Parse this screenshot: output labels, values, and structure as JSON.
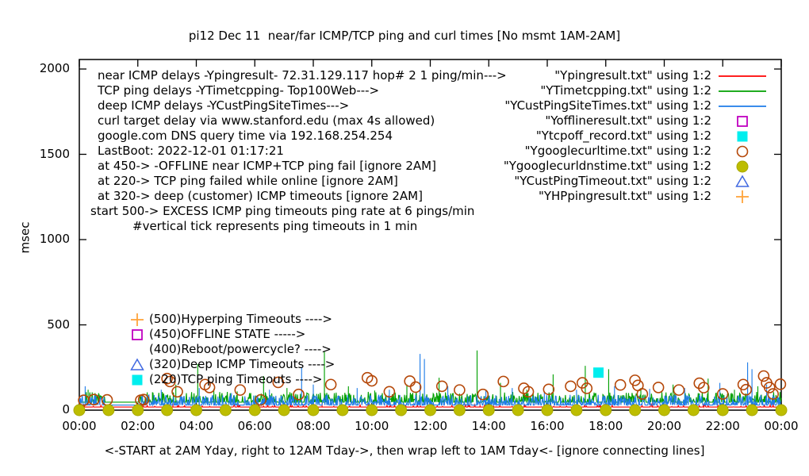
{
  "info_lines": [
    "near ICMP delays -Ypingresult- 72.31.129.117 hop# 2 1 ping/min--->",
    "TCP ping delays -YTimetcpping- Top100Web--->",
    "deep ICMP delays -YCustPingSiteTimes--->",
    "curl target delay via www.stanford.edu (max 4s allowed)",
    "google.com DNS query time via 192.168.254.254",
    "LastBoot: 2022-12-01 01:17:21",
    "at 450-> -OFFLINE near ICMP+TCP ping fail [ignore 2AM]",
    "at 220-> TCP ping failed while online [ignore 2AM]",
    "at 320-> deep (customer) ICMP timeouts [ignore 2AM]",
    "start 500-> EXCESS ICMP ping timeouts ping rate at 6 pings/min",
    "#vertical tick represents ping timeouts in 1 min"
  ],
  "threshold_annotations": [
    {
      "marker": "plus",
      "color": "#ffa43b",
      "text": "(500)Hyperping Timeouts ---->"
    },
    {
      "marker": "open-square",
      "color": "#c000c0",
      "text": "(450)OFFLINE STATE ----->"
    },
    {
      "marker": "none",
      "color": "",
      "text": "(400)Reboot/powercycle? ---->"
    },
    {
      "marker": "open-triangle",
      "color": "#4169e1",
      "text": "(320)Deep ICMP Timeouts ---->"
    },
    {
      "marker": "filled-square",
      "color": "#00eeee",
      "text": "(220)TCP ping Timeouts ---->"
    }
  ],
  "chart_data": {
    "type": "line",
    "title": "pi12 Dec 11  near/far ICMP/TCP ping and curl times [No msmt 1AM-2AM]",
    "ylabel": "msec",
    "xlabel": "<-START at 2AM Yday, right to 12AM Tday->, then wrap left to 1AM Tday<- [ignore connecting lines]",
    "ylim": [
      0,
      2000
    ],
    "y_ticks": [
      0,
      500,
      1000,
      1500,
      2000
    ],
    "x_tick_labels": [
      "00:00",
      "02:00",
      "04:00",
      "06:00",
      "08:00",
      "10:00",
      "12:00",
      "14:00",
      "16:00",
      "18:00",
      "20:00",
      "22:00",
      "00:00"
    ],
    "x_tick_hours": [
      0,
      2,
      4,
      6,
      8,
      10,
      12,
      14,
      16,
      18,
      20,
      22,
      24
    ],
    "grid": false,
    "legend_position": "top-right",
    "no_measurement_gap_hours": [
      0.9,
      2.05
    ],
    "noise_seed": 12,
    "series": [
      {
        "name": "Ypingresult.txt",
        "legend_label": "\"Ypingresult.txt\" using 1:2",
        "style": "line",
        "color": "#ff0000",
        "baseline": 18,
        "noise": {
          "prob": 0.1,
          "max": 18
        },
        "spikes": [
          [
            3.2,
            60
          ],
          [
            8.3,
            55
          ],
          [
            13.7,
            50
          ],
          [
            19.6,
            55
          ],
          [
            23.1,
            60
          ]
        ]
      },
      {
        "name": "YTimetcpping.txt",
        "legend_label": "\"YTimetcpping.txt\" using 1:2",
        "style": "line",
        "color": "#00a000",
        "baseline": 47,
        "noise": {
          "prob": 0.45,
          "max": 60
        },
        "spikes": [
          [
            0.3,
            120
          ],
          [
            2.5,
            105
          ],
          [
            3.3,
            150
          ],
          [
            4.05,
            270
          ],
          [
            4.6,
            125
          ],
          [
            5.4,
            110
          ],
          [
            6.3,
            200
          ],
          [
            7.1,
            130
          ],
          [
            8.38,
            345
          ],
          [
            9.2,
            140
          ],
          [
            10.1,
            115
          ],
          [
            11.2,
            150
          ],
          [
            12.3,
            190
          ],
          [
            13.6,
            350
          ],
          [
            14.4,
            160
          ],
          [
            15.3,
            120
          ],
          [
            16.2,
            210
          ],
          [
            17.3,
            260
          ],
          [
            18.1,
            240
          ],
          [
            19.2,
            130
          ],
          [
            20.3,
            150
          ],
          [
            21.5,
            185
          ],
          [
            22.4,
            120
          ],
          [
            23.2,
            140
          ]
        ]
      },
      {
        "name": "YCustPingSiteTimes.txt",
        "legend_label": "\"YCustPingSiteTimes.txt\" using 1:2",
        "style": "line",
        "color": "#1e7ce8",
        "baseline": 30,
        "noise": {
          "prob": 0.5,
          "max": 60
        },
        "spikes": [
          [
            0.2,
            140
          ],
          [
            2.8,
            120
          ],
          [
            4.1,
            130
          ],
          [
            5.2,
            100
          ],
          [
            6.5,
            120
          ],
          [
            7.6,
            250
          ],
          [
            8.0,
            150
          ],
          [
            9.5,
            130
          ],
          [
            10.6,
            120
          ],
          [
            11.65,
            330
          ],
          [
            11.8,
            300
          ],
          [
            12.6,
            140
          ],
          [
            13.9,
            120
          ],
          [
            14.8,
            130
          ],
          [
            15.9,
            110
          ],
          [
            17.0,
            120
          ],
          [
            18.3,
            140
          ],
          [
            19.5,
            125
          ],
          [
            20.7,
            130
          ],
          [
            21.9,
            160
          ],
          [
            22.85,
            280
          ],
          [
            23.0,
            240
          ],
          [
            23.5,
            150
          ]
        ]
      },
      {
        "name": "Yofflineresult.txt",
        "legend_label": "\"Yofflineresult.txt\" using 1:2",
        "style": "points",
        "marker": "open-square",
        "color": "#c000c0",
        "points": []
      },
      {
        "name": "Ytcpoff_record.txt",
        "legend_label": "\"Ytcpoff_record.txt\" using 1:2",
        "style": "points",
        "marker": "filled-square",
        "color": "#00eeee",
        "points": [
          [
            17.75,
            220
          ]
        ]
      },
      {
        "name": "Ygooglecurltime.txt",
        "legend_label": "\"Ygooglecurltime.txt\" using 1:2",
        "style": "points",
        "marker": "open-circle",
        "color": "#b54708",
        "points": [
          [
            0.15,
            58
          ],
          [
            0.5,
            62
          ],
          [
            0.95,
            60
          ],
          [
            2.1,
            58
          ],
          [
            2.2,
            62
          ],
          [
            3.0,
            185
          ],
          [
            3.1,
            168
          ],
          [
            3.35,
            108
          ],
          [
            4.3,
            150
          ],
          [
            4.45,
            133
          ],
          [
            5.5,
            118
          ],
          [
            6.2,
            60
          ],
          [
            6.8,
            163
          ],
          [
            7.5,
            92
          ],
          [
            8.6,
            150
          ],
          [
            9.85,
            190
          ],
          [
            10.0,
            172
          ],
          [
            10.6,
            108
          ],
          [
            11.3,
            170
          ],
          [
            11.5,
            135
          ],
          [
            12.4,
            140
          ],
          [
            13.0,
            118
          ],
          [
            13.8,
            92
          ],
          [
            14.5,
            168
          ],
          [
            15.2,
            128
          ],
          [
            15.35,
            108
          ],
          [
            16.05,
            122
          ],
          [
            16.8,
            140
          ],
          [
            17.2,
            160
          ],
          [
            17.35,
            128
          ],
          [
            18.5,
            148
          ],
          [
            19.0,
            175
          ],
          [
            19.1,
            145
          ],
          [
            19.25,
            95
          ],
          [
            19.8,
            133
          ],
          [
            20.5,
            118
          ],
          [
            21.2,
            158
          ],
          [
            21.35,
            132
          ],
          [
            22.0,
            95
          ],
          [
            22.7,
            150
          ],
          [
            22.8,
            120
          ],
          [
            23.4,
            200
          ],
          [
            23.5,
            160
          ],
          [
            23.6,
            133
          ],
          [
            23.72,
            95
          ],
          [
            23.97,
            152
          ]
        ]
      },
      {
        "name": "Ygooglecurldnstime.txt",
        "legend_label": "\"Ygooglecurldnstime.txt\" using 1:2",
        "style": "points",
        "marker": "filled-circle",
        "color": "#bdbd00",
        "points": [
          [
            0,
            0
          ],
          [
            1,
            0
          ],
          [
            2,
            0
          ],
          [
            3,
            0
          ],
          [
            4,
            0
          ],
          [
            5,
            0
          ],
          [
            6,
            0
          ],
          [
            7,
            0
          ],
          [
            8,
            0
          ],
          [
            9,
            0
          ],
          [
            10,
            0
          ],
          [
            11,
            0
          ],
          [
            12,
            0
          ],
          [
            13,
            0
          ],
          [
            14,
            0
          ],
          [
            15,
            0
          ],
          [
            16,
            0
          ],
          [
            17,
            0
          ],
          [
            18,
            0
          ],
          [
            19,
            0
          ],
          [
            20,
            0
          ],
          [
            21,
            0
          ],
          [
            22,
            0
          ],
          [
            23,
            0
          ],
          [
            24,
            0
          ]
        ]
      },
      {
        "name": "YCustPingTimeout.txt",
        "legend_label": "\"YCustPingTimeout.txt\" using 1:2",
        "style": "points",
        "marker": "open-triangle",
        "color": "#4169e1",
        "points": []
      },
      {
        "name": "YHPpingresult.txt",
        "legend_label": "\"YHPpingresult.txt\" using 1:2",
        "style": "points",
        "marker": "plus",
        "color": "#ffa43b",
        "points": []
      }
    ]
  }
}
